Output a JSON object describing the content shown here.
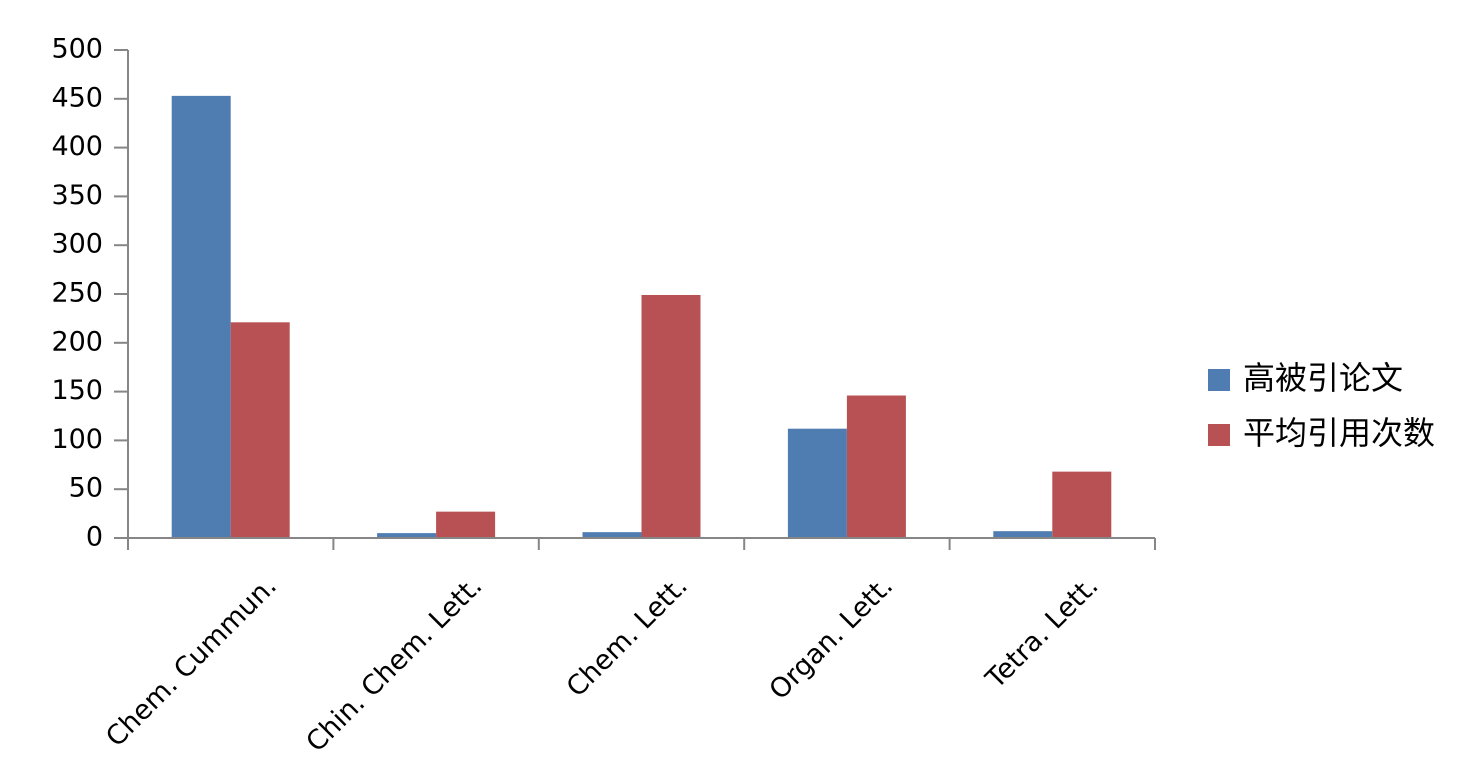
{
  "chart_data": {
    "type": "bar",
    "categories": [
      "Chem. Cummun.",
      "Chin. Chem. Lett.",
      "Chem. Lett.",
      "Organ. Lett.",
      "Tetra. Lett."
    ],
    "series": [
      {
        "name": "高被引论文",
        "color": "#4f7db1",
        "values": [
          453,
          5,
          6,
          112,
          7
        ]
      },
      {
        "name": "平均引用次数",
        "color": "#b85153",
        "values": [
          221,
          27,
          249,
          146,
          68
        ]
      }
    ],
    "ylim": [
      0,
      500
    ],
    "yticks": [
      0,
      50,
      100,
      150,
      200,
      250,
      300,
      350,
      400,
      450,
      500
    ],
    "grid": false,
    "legend": "right"
  }
}
